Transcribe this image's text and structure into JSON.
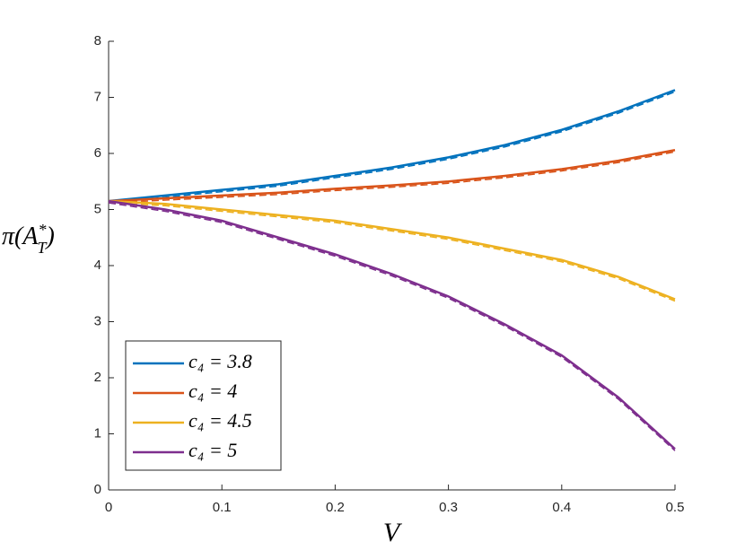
{
  "chart_data": {
    "type": "line",
    "xlabel": "V",
    "ylabel": "π(A_T^*)",
    "x": [
      0,
      0.05,
      0.1,
      0.15,
      0.2,
      0.25,
      0.3,
      0.35,
      0.4,
      0.45,
      0.5
    ],
    "series": [
      {
        "name": "c₄ = 3.8",
        "color": "#0072bd",
        "values": [
          5.15,
          5.25,
          5.35,
          5.45,
          5.6,
          5.75,
          5.93,
          6.15,
          6.42,
          6.75,
          7.13
        ]
      },
      {
        "name": "c₄ = 4",
        "color": "#d95319",
        "values": [
          5.15,
          5.2,
          5.25,
          5.3,
          5.37,
          5.43,
          5.5,
          5.6,
          5.72,
          5.87,
          6.06
        ]
      },
      {
        "name": "c₄ = 4.5",
        "color": "#edb120",
        "values": [
          5.15,
          5.1,
          5.0,
          4.9,
          4.8,
          4.65,
          4.5,
          4.3,
          4.1,
          3.8,
          3.4
        ]
      },
      {
        "name": "c₄ = 5",
        "color": "#7e2f8e",
        "values": [
          5.15,
          5.0,
          4.8,
          4.5,
          4.2,
          3.85,
          3.45,
          2.95,
          2.4,
          1.65,
          0.73
        ]
      }
    ],
    "xlim": [
      0,
      0.5
    ],
    "xticks": [
      0,
      0.1,
      0.2,
      0.3,
      0.4,
      0.5
    ],
    "ylim": [
      0,
      8
    ],
    "yticks": [
      0,
      1,
      2,
      3,
      4,
      5,
      6,
      7,
      8
    ],
    "legend": "lower left"
  }
}
